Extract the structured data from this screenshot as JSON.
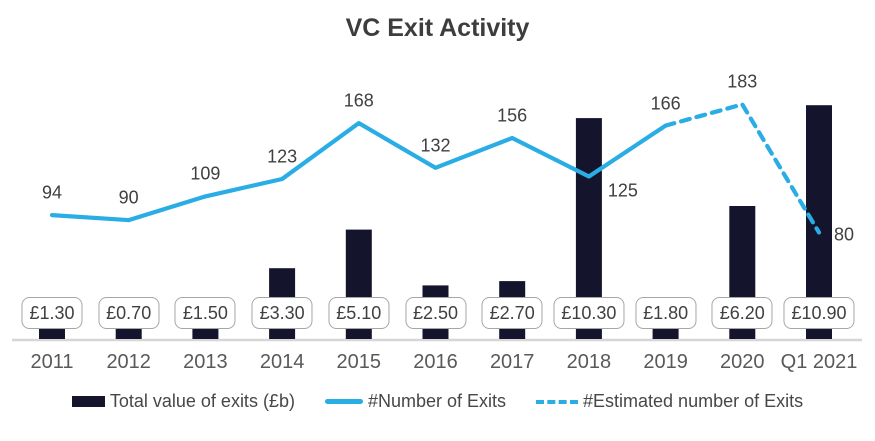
{
  "title": "VC Exit Activity",
  "legend": {
    "items": [
      {
        "label": "Total value of exits (£b)",
        "swatch": "bar"
      },
      {
        "label": "#Number of Exits",
        "swatch": "solid-line"
      },
      {
        "label": "#Estimated number of Exits",
        "swatch": "dashed-line"
      }
    ]
  },
  "colors": {
    "bar": "#15142d",
    "line": "#29ade4",
    "axis": "#d6d6d6",
    "title_text": "#3d3d3d",
    "point_label_text": "#404040",
    "year_text": "#595959",
    "box_border": "#a6a6a6",
    "box_background": "#ffffff"
  },
  "chart_data": {
    "type": "combo bar+line",
    "title": "VC Exit Activity",
    "xlabel": "",
    "ylabel": "",
    "grid": false,
    "legend_position": "bottom",
    "categories": [
      "2011",
      "2012",
      "2013",
      "2014",
      "2015",
      "2016",
      "2017",
      "2018",
      "2019",
      "2020",
      "Q1 2021"
    ],
    "series": [
      {
        "name": "Total value of exits (£b)",
        "type": "bar",
        "values": [
          1.3,
          0.7,
          1.5,
          3.3,
          5.1,
          2.5,
          2.7,
          10.3,
          1.8,
          6.2,
          10.9
        ],
        "data_labels": [
          "£1.30",
          "£0.70",
          "£1.50",
          "£3.30",
          "£5.10",
          "£2.50",
          "£2.70",
          "£10.30",
          "£1.80",
          "£6.20",
          "£10.90"
        ]
      },
      {
        "name": "#Number of Exits",
        "type": "line",
        "style": "solid",
        "category_indices": [
          0,
          1,
          2,
          3,
          4,
          5,
          6,
          7,
          8
        ],
        "values": [
          94,
          90,
          109,
          123,
          168,
          132,
          156,
          125,
          166
        ]
      },
      {
        "name": "#Estimated number of Exits",
        "type": "line",
        "style": "dashed",
        "category_indices": [
          8,
          9,
          10
        ],
        "values": [
          166,
          183,
          80
        ]
      }
    ]
  }
}
